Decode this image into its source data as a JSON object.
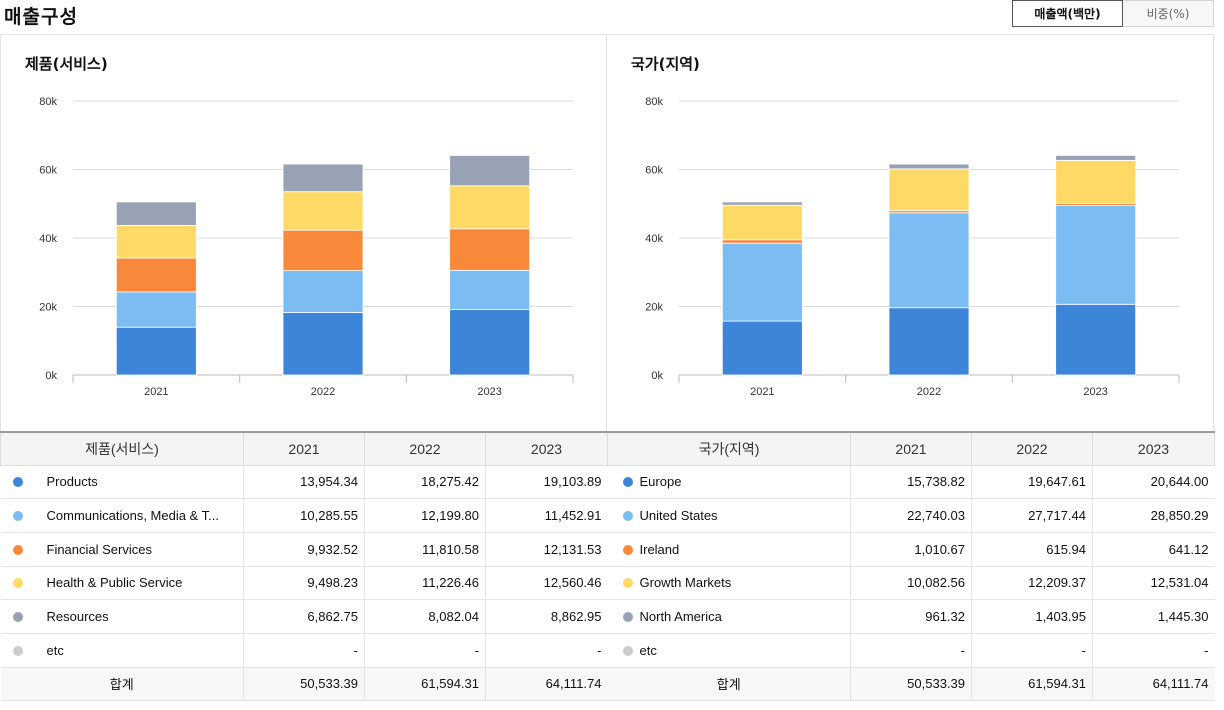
{
  "header": {
    "title": "매출구성",
    "toggle_amount": "매출액(백만)",
    "toggle_ratio": "비중(%)"
  },
  "colors": {
    "blue_dark": "#3d85d8",
    "blue_light": "#7bbdf3",
    "orange": "#f8893a",
    "yellow": "#ffd966",
    "gray": "#97a3b4",
    "light_gray": "#cccccc"
  },
  "chart_data": [
    {
      "type": "bar",
      "stacked": true,
      "title": "제품(서비스)",
      "categories": [
        "2021",
        "2022",
        "2023"
      ],
      "ylim": [
        0,
        80000
      ],
      "yticks": [
        0,
        20000,
        40000,
        60000,
        80000
      ],
      "ytick_labels": [
        "0k",
        "20k",
        "40k",
        "60k",
        "80k"
      ],
      "grid": true,
      "series": [
        {
          "name": "Products",
          "color": "#3d85d8",
          "values": [
            13954.34,
            18275.42,
            19103.89
          ]
        },
        {
          "name": "Communications, Media & T...",
          "color": "#7bbdf3",
          "values": [
            10285.55,
            12199.8,
            11452.91
          ]
        },
        {
          "name": "Financial Services",
          "color": "#f8893a",
          "values": [
            9932.52,
            11810.58,
            12131.53
          ]
        },
        {
          "name": "Health & Public Service",
          "color": "#ffd966",
          "values": [
            9498.23,
            11226.46,
            12560.46
          ]
        },
        {
          "name": "Resources",
          "color": "#97a3b4",
          "values": [
            6862.75,
            8082.04,
            8862.95
          ]
        }
      ]
    },
    {
      "type": "bar",
      "stacked": true,
      "title": "국가(지역)",
      "categories": [
        "2021",
        "2022",
        "2023"
      ],
      "ylim": [
        0,
        80000
      ],
      "yticks": [
        0,
        20000,
        40000,
        60000,
        80000
      ],
      "ytick_labels": [
        "0k",
        "20k",
        "40k",
        "60k",
        "80k"
      ],
      "grid": true,
      "series": [
        {
          "name": "Europe",
          "color": "#3d85d8",
          "values": [
            15738.82,
            19647.61,
            20644.0
          ]
        },
        {
          "name": "United States",
          "color": "#7bbdf3",
          "values": [
            22740.03,
            27717.44,
            28850.29
          ]
        },
        {
          "name": "Ireland",
          "color": "#f8893a",
          "values": [
            1010.67,
            615.94,
            641.12
          ]
        },
        {
          "name": "Growth Markets",
          "color": "#ffd966",
          "values": [
            10082.56,
            12209.37,
            12531.04
          ]
        },
        {
          "name": "North America",
          "color": "#97a3b4",
          "values": [
            961.32,
            1403.95,
            1445.3
          ]
        }
      ]
    }
  ],
  "tables": {
    "left": {
      "headers": [
        "제품(서비스)",
        "2021",
        "2022",
        "2023"
      ],
      "rows": [
        {
          "name": "Products",
          "color": "#3d85d8",
          "values": [
            "13,954.34",
            "18,275.42",
            "19,103.89"
          ]
        },
        {
          "name": "Communications, Media & T...",
          "color": "#7bbdf3",
          "values": [
            "10,285.55",
            "12,199.80",
            "11,452.91"
          ]
        },
        {
          "name": "Financial Services",
          "color": "#f8893a",
          "values": [
            "9,932.52",
            "11,810.58",
            "12,131.53"
          ]
        },
        {
          "name": "Health & Public Service",
          "color": "#ffd966",
          "values": [
            "9,498.23",
            "11,226.46",
            "12,560.46"
          ]
        },
        {
          "name": "Resources",
          "color": "#97a3b4",
          "values": [
            "6,862.75",
            "8,082.04",
            "8,862.95"
          ]
        },
        {
          "name": "etc",
          "color": "#cccccc",
          "values": [
            "-",
            "-",
            "-"
          ]
        }
      ],
      "total_label": "합계",
      "totals": [
        "50,533.39",
        "61,594.31",
        "64,111.74"
      ]
    },
    "right": {
      "headers": [
        "국가(지역)",
        "2021",
        "2022",
        "2023"
      ],
      "rows": [
        {
          "name": "Europe",
          "color": "#3d85d8",
          "values": [
            "15,738.82",
            "19,647.61",
            "20,644.00"
          ]
        },
        {
          "name": "United States",
          "color": "#7bbdf3",
          "values": [
            "22,740.03",
            "27,717.44",
            "28,850.29"
          ]
        },
        {
          "name": "Ireland",
          "color": "#f8893a",
          "values": [
            "1,010.67",
            "615.94",
            "641.12"
          ]
        },
        {
          "name": "Growth Markets",
          "color": "#ffd966",
          "values": [
            "10,082.56",
            "12,209.37",
            "12,531.04"
          ]
        },
        {
          "name": "North America",
          "color": "#97a3b4",
          "values": [
            "961.32",
            "1,403.95",
            "1,445.30"
          ]
        },
        {
          "name": "etc",
          "color": "#cccccc",
          "values": [
            "-",
            "-",
            "-"
          ]
        }
      ],
      "total_label": "합계",
      "totals": [
        "50,533.39",
        "61,594.31",
        "64,111.74"
      ]
    }
  }
}
